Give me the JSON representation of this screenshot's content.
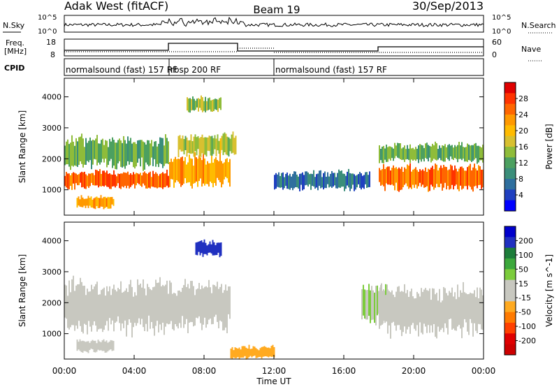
{
  "header": {
    "title": "Adak West (fitACF)",
    "beam": "Beam 19",
    "date": "30/Sep/2013"
  },
  "noise_panel": {
    "left_label": "N.Sky",
    "right_label": "N.Search",
    "left_ticks": [
      "10^5",
      "10^0"
    ],
    "right_ticks": [
      "10^5",
      "10^0"
    ]
  },
  "freq_panel": {
    "left_label_1": "Freq.",
    "left_label_2": "[MHz]",
    "right_label": "Nave",
    "left_ticks": [
      "18",
      "8"
    ],
    "right_ticks": [
      "60",
      "0"
    ]
  },
  "cpid": {
    "label": "CPID",
    "modes": [
      {
        "start_h": 0,
        "end_h": 6,
        "text": "normalsound (fast) 157 RF"
      },
      {
        "start_h": 6,
        "end_h": 12,
        "text": "rbsp 200 RF"
      },
      {
        "start_h": 12,
        "end_h": 24,
        "text": "normalsound (fast) 157 RF"
      }
    ]
  },
  "time_axis": {
    "label": "Time UT",
    "ticks": [
      "00:00",
      "04:00",
      "08:00",
      "12:00",
      "16:00",
      "20:00",
      "00:00"
    ]
  },
  "chart_data": [
    {
      "type": "heatmap",
      "name": "power",
      "ylabel": "Slant Range [km]",
      "ylim": [
        180,
        4600
      ],
      "xlim_hours": [
        0,
        24
      ],
      "yticks": [
        1000,
        2000,
        3000,
        4000
      ],
      "colorbar_label": "Power [dB]",
      "colorbar_ticks": [
        "28",
        "24",
        "20",
        "16",
        "12",
        "8",
        "4"
      ],
      "colorbar_colors": [
        "#e00000",
        "#ff3300",
        "#ff6600",
        "#ff9900",
        "#ffbb00",
        "#d8c030",
        "#8fbc3a",
        "#4ca060",
        "#3b8e7a",
        "#2f6f9e",
        "#2040c0",
        "#0000ff"
      ],
      "colorbar_lim": [
        0,
        32
      ],
      "regions": [
        {
          "t0": 0.0,
          "t1": 6.0,
          "r0": 1050,
          "r1": 1600,
          "level": 26
        },
        {
          "t0": 6.0,
          "t1": 9.5,
          "r0": 1100,
          "r1": 2100,
          "level": 22
        },
        {
          "t0": 0.0,
          "t1": 6.0,
          "r0": 1700,
          "r1": 2700,
          "level": 13
        },
        {
          "t0": 6.5,
          "t1": 9.8,
          "r0": 2100,
          "r1": 2800,
          "level": 16
        },
        {
          "t0": 7.0,
          "t1": 9.0,
          "r0": 3500,
          "r1": 4000,
          "level": 14
        },
        {
          "t0": 0.7,
          "t1": 2.8,
          "r0": 400,
          "r1": 800,
          "level": 22
        },
        {
          "t0": 12.0,
          "t1": 17.5,
          "r0": 1000,
          "r1": 1600,
          "level": 7
        },
        {
          "t0": 18.0,
          "t1": 24.0,
          "r0": 1000,
          "r1": 1800,
          "level": 25
        },
        {
          "t0": 18.0,
          "t1": 24.0,
          "r0": 1900,
          "r1": 2500,
          "level": 13
        }
      ]
    },
    {
      "type": "heatmap",
      "name": "velocity",
      "ylabel": "Slant Range [km]",
      "ylim": [
        180,
        4600
      ],
      "xlim_hours": [
        0,
        24
      ],
      "yticks": [
        1000,
        2000,
        3000,
        4000
      ],
      "colorbar_label": "Velocity [m s^-1]",
      "colorbar_ticks": [
        "200",
        "100",
        "50",
        "15",
        "-15",
        "-50",
        "-100",
        "-200"
      ],
      "colorbar_colors": [
        "#0000cc",
        "#2030c0",
        "#1d7d3a",
        "#3ca83c",
        "#7ccc3c",
        "#c8c8c0",
        "#c8c8c0",
        "#ffaa20",
        "#ff7a00",
        "#ff4000",
        "#e00000",
        "#cc0000"
      ],
      "colorbar_lim": [
        -250,
        250
      ],
      "regions": [
        {
          "t0": 0.0,
          "t1": 6.0,
          "r0": 1050,
          "r1": 2700,
          "level": 0
        },
        {
          "t0": 6.0,
          "t1": 9.5,
          "r0": 1100,
          "r1": 2700,
          "level": 0
        },
        {
          "t0": 7.5,
          "t1": 9.0,
          "r0": 3500,
          "r1": 4000,
          "level": 180
        },
        {
          "t0": 0.7,
          "t1": 2.8,
          "r0": 400,
          "r1": 800,
          "level": 0
        },
        {
          "t0": 9.5,
          "t1": 12.0,
          "r0": 200,
          "r1": 600,
          "level": -60
        },
        {
          "t0": 17.0,
          "t1": 18.5,
          "r0": 1300,
          "r1": 2600,
          "level": 40
        },
        {
          "t0": 18.0,
          "t1": 24.0,
          "r0": 1000,
          "r1": 2500,
          "level": 0
        }
      ]
    }
  ]
}
